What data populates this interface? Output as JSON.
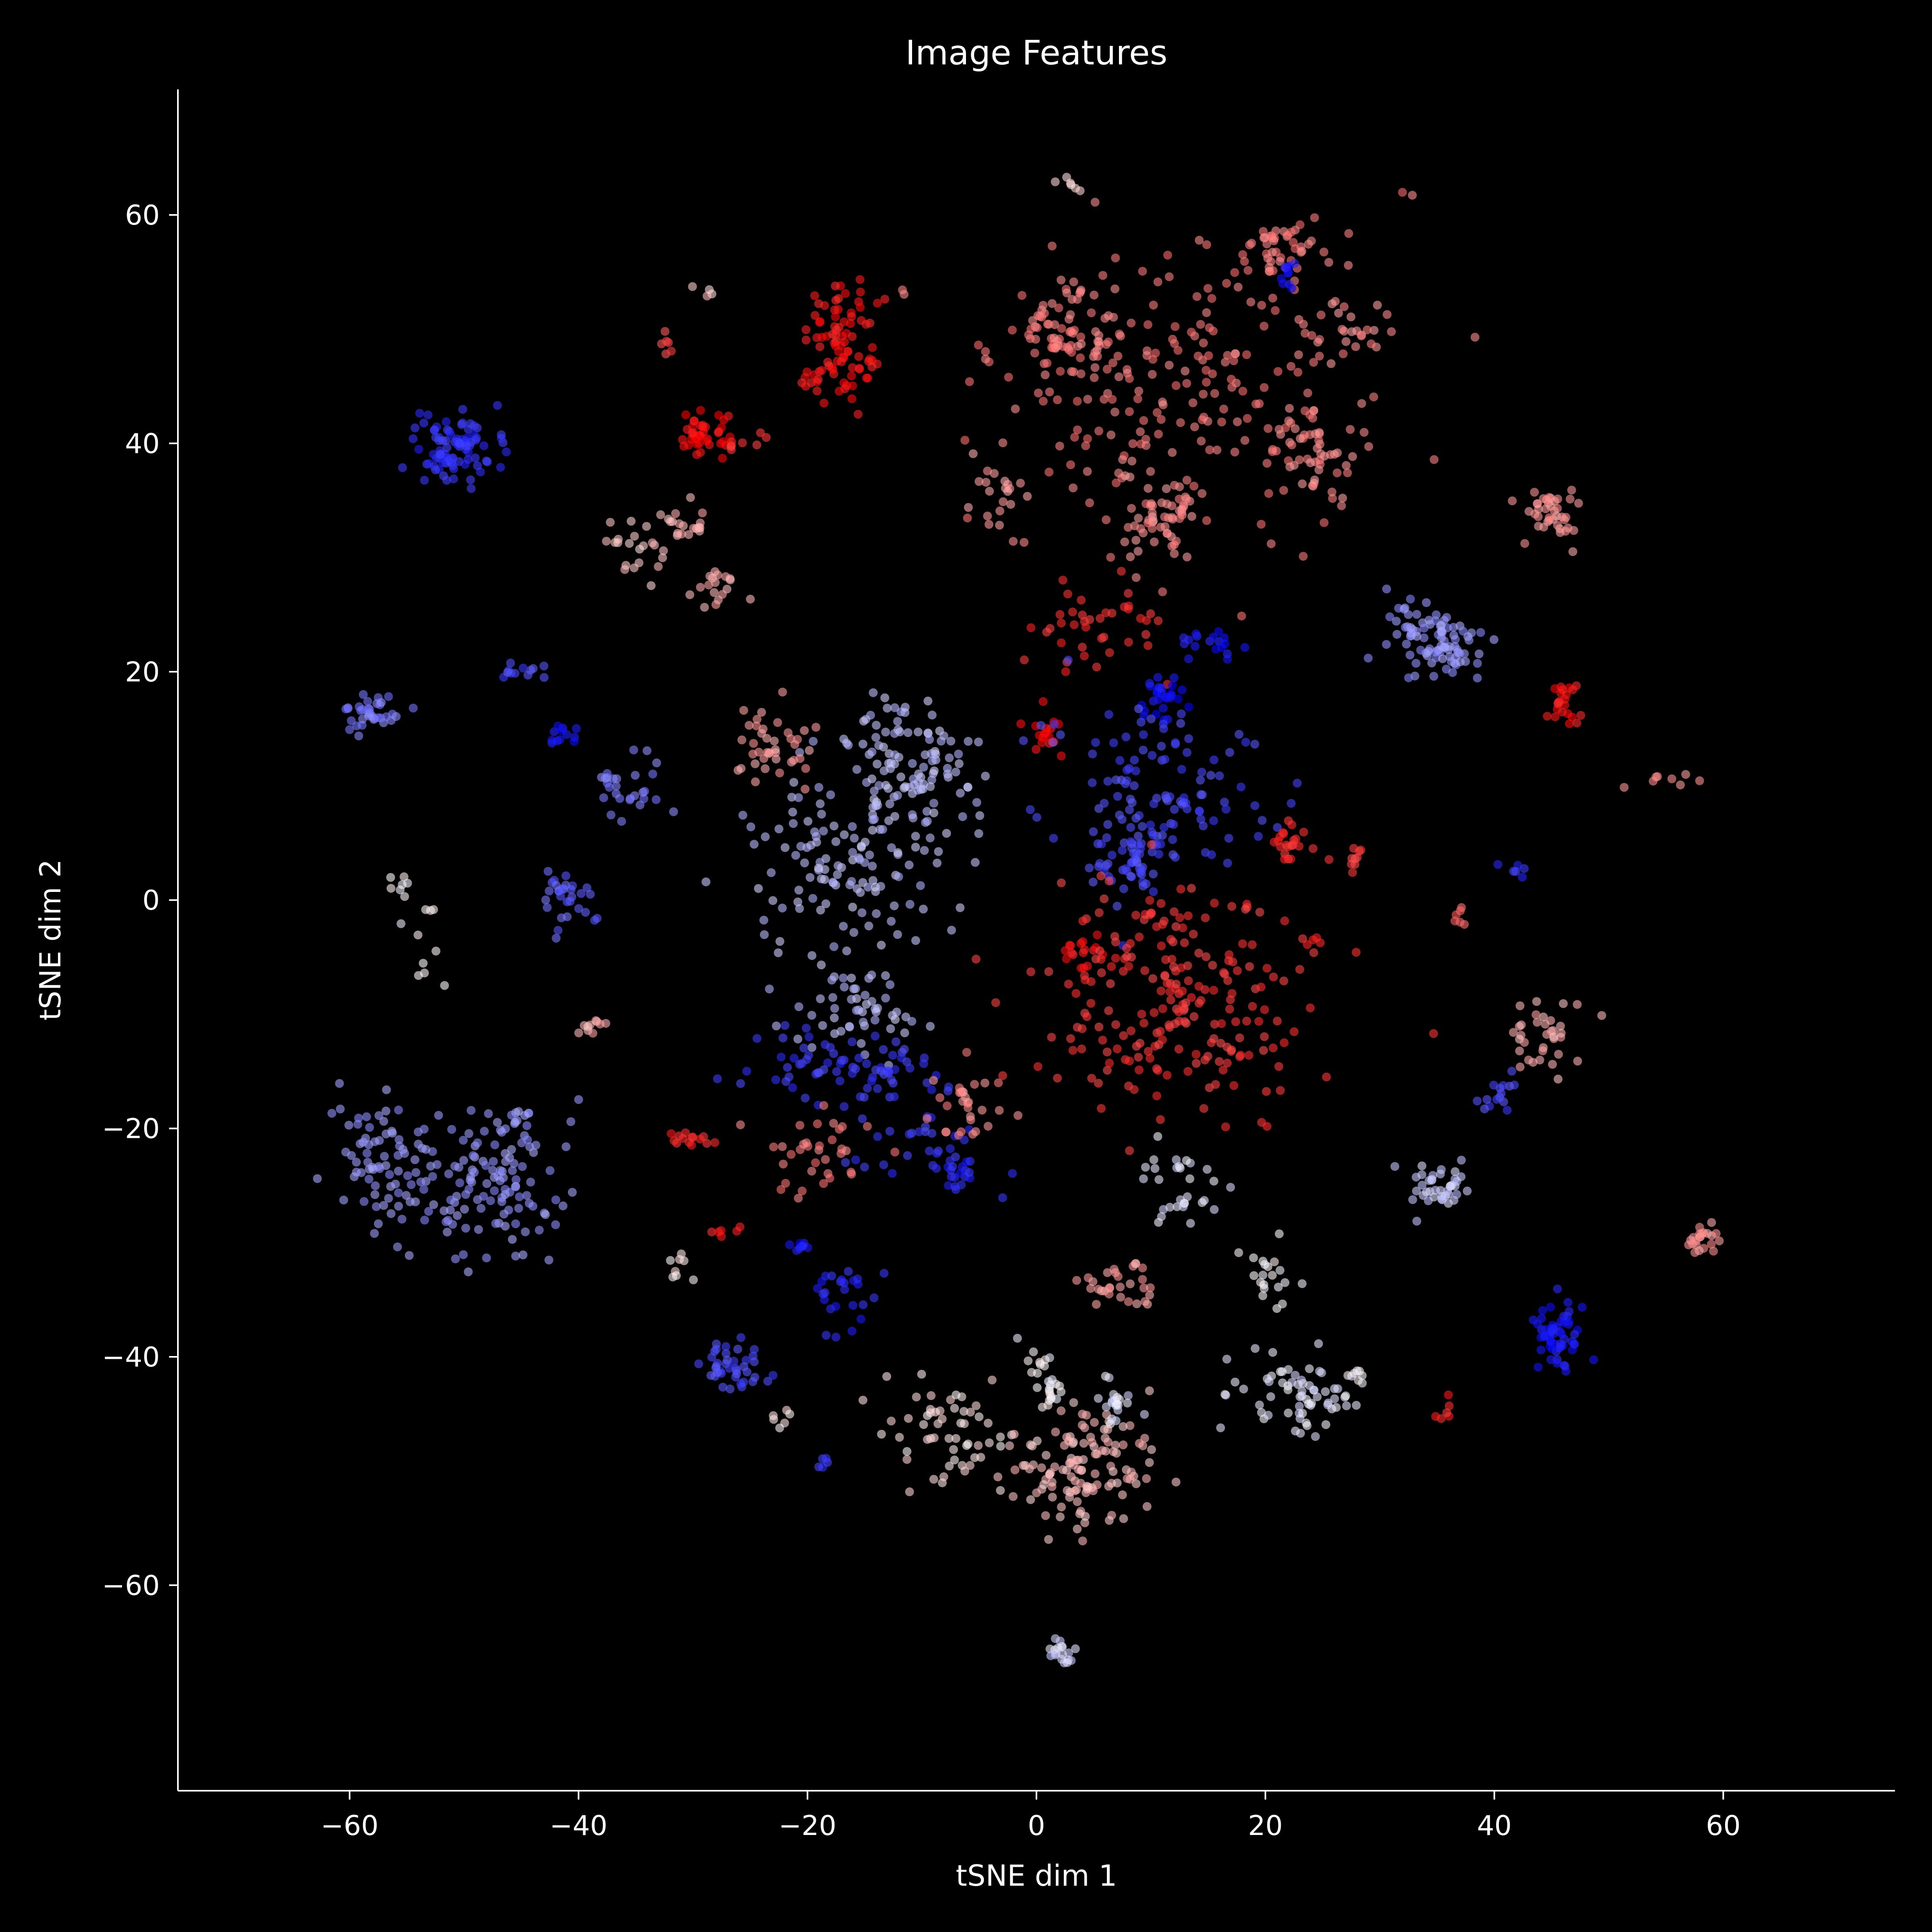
{
  "chart_data": {
    "type": "scatter",
    "title": "Image Features",
    "xlabel": "tSNE dim 1",
    "ylabel": "tSNE dim 2",
    "xlim": [
      -75,
      75
    ],
    "ylim": [
      -78,
      71
    ],
    "xticks": [
      -60,
      -40,
      -20,
      0,
      20,
      40,
      60
    ],
    "yticks": [
      -60,
      -40,
      -20,
      0,
      20,
      40,
      60
    ],
    "grid": false,
    "legend": "none",
    "background": "#000000",
    "colormap": "bwr",
    "point_alpha": 0.6,
    "clusters": [
      {
        "cx": -51,
        "cy": 39.5,
        "sx": 1.8,
        "sy": 1.6,
        "n": 90,
        "c": 0.1
      },
      {
        "cx": -17,
        "cy": 49,
        "sx": 1.8,
        "sy": 3.0,
        "n": 90,
        "c": 0.95
      },
      {
        "cx": -29.5,
        "cy": 41,
        "sx": 1.2,
        "sy": 1.0,
        "n": 40,
        "c": 0.98
      },
      {
        "cx": -26,
        "cy": 40,
        "sx": 1.5,
        "sy": 0.5,
        "n": 8,
        "c": 0.9
      },
      {
        "cx": -32.5,
        "cy": 48.5,
        "sx": 0.3,
        "sy": 1.0,
        "n": 6,
        "c": 0.85
      },
      {
        "cx": -29,
        "cy": 53.5,
        "sx": 0.6,
        "sy": 0.6,
        "n": 4,
        "c": 0.6
      },
      {
        "cx": 3,
        "cy": 49.5,
        "sx": 2.0,
        "sy": 2.2,
        "n": 70,
        "c": 0.75
      },
      {
        "cx": 13,
        "cy": 45,
        "sx": 8.0,
        "sy": 6.0,
        "n": 200,
        "c": 0.75
      },
      {
        "cx": 21,
        "cy": 57,
        "sx": 2.0,
        "sy": 1.5,
        "n": 45,
        "c": 0.75
      },
      {
        "cx": 27,
        "cy": 50,
        "sx": 1.8,
        "sy": 1.8,
        "n": 25,
        "c": 0.72
      },
      {
        "cx": 24,
        "cy": 39,
        "sx": 2.0,
        "sy": 1.8,
        "n": 50,
        "c": 0.72
      },
      {
        "cx": 11,
        "cy": 33.5,
        "sx": 2.0,
        "sy": 2.0,
        "n": 60,
        "c": 0.72
      },
      {
        "cx": 22,
        "cy": 54.5,
        "sx": 0.4,
        "sy": 0.8,
        "n": 10,
        "c": 0.05
      },
      {
        "cx": -3,
        "cy": 36,
        "sx": 1.5,
        "sy": 2.0,
        "n": 22,
        "c": 0.7
      },
      {
        "cx": 3,
        "cy": 62.8,
        "sx": 0.8,
        "sy": 0.3,
        "n": 6,
        "c": 0.58
      },
      {
        "cx": 45,
        "cy": 34,
        "sx": 1.2,
        "sy": 1.5,
        "n": 40,
        "c": 0.7
      },
      {
        "cx": -30.5,
        "cy": 33,
        "sx": 1.0,
        "sy": 0.8,
        "n": 18,
        "c": 0.65
      },
      {
        "cx": -35,
        "cy": 30.5,
        "sx": 1.8,
        "sy": 1.5,
        "n": 22,
        "c": 0.6
      },
      {
        "cx": -28.5,
        "cy": 27.5,
        "sx": 1.2,
        "sy": 1.2,
        "n": 18,
        "c": 0.65
      },
      {
        "cx": 5,
        "cy": 24,
        "sx": 3.0,
        "sy": 2.0,
        "n": 40,
        "c": 0.9
      },
      {
        "cx": 11,
        "cy": 17.5,
        "sx": 1.0,
        "sy": 1.0,
        "n": 28,
        "c": 0.03
      },
      {
        "cx": 15,
        "cy": 22.5,
        "sx": 1.5,
        "sy": 0.8,
        "n": 18,
        "c": 0.05
      },
      {
        "cx": 1,
        "cy": 14.5,
        "sx": 0.8,
        "sy": 1.0,
        "n": 18,
        "c": 0.97
      },
      {
        "cx": 10,
        "cy": 10,
        "sx": 4.5,
        "sy": 3.5,
        "n": 110,
        "c": 0.15
      },
      {
        "cx": 8,
        "cy": 4,
        "sx": 1.8,
        "sy": 2.0,
        "n": 55,
        "c": 0.15
      },
      {
        "cx": 33,
        "cy": 24,
        "sx": 2.0,
        "sy": 1.5,
        "n": 25,
        "c": 0.3
      },
      {
        "cx": 35.5,
        "cy": 22,
        "sx": 1.8,
        "sy": 1.5,
        "n": 65,
        "c": 0.3
      },
      {
        "cx": 46,
        "cy": 17,
        "sx": 0.6,
        "sy": 1.2,
        "n": 22,
        "c": 0.95
      },
      {
        "cx": 55.5,
        "cy": 10.5,
        "sx": 2.0,
        "sy": 0.4,
        "n": 8,
        "c": 0.7
      },
      {
        "cx": -58,
        "cy": 16.5,
        "sx": 1.2,
        "sy": 0.8,
        "n": 35,
        "c": 0.25
      },
      {
        "cx": -45,
        "cy": 20,
        "sx": 1.0,
        "sy": 0.4,
        "n": 12,
        "c": 0.15
      },
      {
        "cx": -41,
        "cy": 14.5,
        "sx": 1.0,
        "sy": 0.5,
        "n": 12,
        "c": 0.05
      },
      {
        "cx": -11,
        "cy": 11,
        "sx": 3.0,
        "sy": 3.5,
        "n": 120,
        "c": 0.38
      },
      {
        "cx": -17,
        "cy": 4,
        "sx": 4.0,
        "sy": 4.0,
        "n": 110,
        "c": 0.38
      },
      {
        "cx": -23,
        "cy": 13,
        "sx": 1.8,
        "sy": 1.8,
        "n": 40,
        "c": 0.68
      },
      {
        "cx": -36,
        "cy": 10,
        "sx": 1.8,
        "sy": 1.5,
        "n": 28,
        "c": 0.25
      },
      {
        "cx": -41,
        "cy": 0.5,
        "sx": 1.5,
        "sy": 1.5,
        "n": 30,
        "c": 0.2
      },
      {
        "cx": -55.5,
        "cy": 1.2,
        "sx": 0.4,
        "sy": 0.5,
        "n": 7,
        "c": 0.5
      },
      {
        "cx": -53,
        "cy": -3.5,
        "sx": 1.5,
        "sy": 1.8,
        "n": 10,
        "c": 0.5
      },
      {
        "cx": -16,
        "cy": -9,
        "sx": 3.0,
        "sy": 2.5,
        "n": 55,
        "c": 0.38
      },
      {
        "cx": -16,
        "cy": -15,
        "sx": 4.5,
        "sy": 2.0,
        "n": 75,
        "c": 0.12
      },
      {
        "cx": -10,
        "cy": -21,
        "sx": 3.0,
        "sy": 2.0,
        "n": 30,
        "c": 0.12
      },
      {
        "cx": -20,
        "cy": -22,
        "sx": 2.5,
        "sy": 2.0,
        "n": 35,
        "c": 0.75
      },
      {
        "cx": -6,
        "cy": -18,
        "sx": 1.5,
        "sy": 1.8,
        "n": 30,
        "c": 0.72
      },
      {
        "cx": -30,
        "cy": -21,
        "sx": 1.0,
        "sy": 0.5,
        "n": 14,
        "c": 0.92
      },
      {
        "cx": -39,
        "cy": -11,
        "sx": 0.8,
        "sy": 0.4,
        "n": 10,
        "c": 0.65
      },
      {
        "cx": 4,
        "cy": -4.5,
        "sx": 1.5,
        "sy": 1.0,
        "n": 20,
        "c": 0.95
      },
      {
        "cx": 12,
        "cy": -9,
        "sx": 6.0,
        "sy": 5.0,
        "n": 220,
        "c": 0.88
      },
      {
        "cx": 22,
        "cy": 5.5,
        "sx": 1.0,
        "sy": 1.0,
        "n": 20,
        "c": 0.9
      },
      {
        "cx": 27.5,
        "cy": 3.5,
        "sx": 0.8,
        "sy": 0.8,
        "n": 10,
        "c": 0.88
      },
      {
        "cx": 24.5,
        "cy": -3.8,
        "sx": 0.5,
        "sy": 0.5,
        "n": 6,
        "c": 0.9
      },
      {
        "cx": 37,
        "cy": -1.5,
        "sx": 0.4,
        "sy": 0.6,
        "n": 6,
        "c": 0.8
      },
      {
        "cx": 44.5,
        "cy": -12,
        "sx": 1.5,
        "sy": 1.5,
        "n": 35,
        "c": 0.65
      },
      {
        "cx": 40,
        "cy": -17,
        "sx": 1.5,
        "sy": 0.8,
        "n": 15,
        "c": 0.15
      },
      {
        "cx": 42,
        "cy": 2.5,
        "sx": 0.8,
        "sy": 0.5,
        "n": 6,
        "c": 0.1
      },
      {
        "cx": 35,
        "cy": -25,
        "sx": 1.2,
        "sy": 1.2,
        "n": 40,
        "c": 0.4
      },
      {
        "cx": 58.5,
        "cy": -29.5,
        "sx": 0.8,
        "sy": 0.7,
        "n": 22,
        "c": 0.7
      },
      {
        "cx": 45.5,
        "cy": -38,
        "sx": 1.0,
        "sy": 1.4,
        "n": 55,
        "c": 0.05
      },
      {
        "cx": -57,
        "cy": -22,
        "sx": 2.5,
        "sy": 3.0,
        "n": 80,
        "c": 0.3
      },
      {
        "cx": -48,
        "cy": -26,
        "sx": 3.5,
        "sy": 3.0,
        "n": 100,
        "c": 0.3
      },
      {
        "cx": -45,
        "cy": -20,
        "sx": 1.5,
        "sy": 1.5,
        "n": 25,
        "c": 0.3
      },
      {
        "cx": -27,
        "cy": -41,
        "sx": 1.5,
        "sy": 1.2,
        "n": 40,
        "c": 0.15
      },
      {
        "cx": -21,
        "cy": -30.5,
        "sx": 0.6,
        "sy": 0.4,
        "n": 8,
        "c": 0.05
      },
      {
        "cx": -17,
        "cy": -35,
        "sx": 2.0,
        "sy": 1.5,
        "n": 25,
        "c": 0.08
      },
      {
        "cx": -7,
        "cy": -24,
        "sx": 0.8,
        "sy": 1.0,
        "n": 18,
        "c": 0.08
      },
      {
        "cx": -27,
        "cy": -29,
        "sx": 0.6,
        "sy": 0.4,
        "n": 6,
        "c": 0.92
      },
      {
        "cx": -31,
        "cy": -32,
        "sx": 0.6,
        "sy": 1.0,
        "n": 8,
        "c": 0.55
      },
      {
        "cx": 12,
        "cy": -25,
        "sx": 2.0,
        "sy": 2.0,
        "n": 30,
        "c": 0.45
      },
      {
        "cx": 20.5,
        "cy": -33,
        "sx": 1.2,
        "sy": 1.5,
        "n": 20,
        "c": 0.5
      },
      {
        "cx": 7,
        "cy": -34,
        "sx": 2.0,
        "sy": 1.2,
        "n": 30,
        "c": 0.68
      },
      {
        "cx": -7,
        "cy": -47,
        "sx": 3.5,
        "sy": 2.5,
        "n": 60,
        "c": 0.55
      },
      {
        "cx": 0.5,
        "cy": -42,
        "sx": 1.0,
        "sy": 1.5,
        "n": 25,
        "c": 0.5
      },
      {
        "cx": 4,
        "cy": -50,
        "sx": 3.0,
        "sy": 2.5,
        "n": 120,
        "c": 0.62
      },
      {
        "cx": 7,
        "cy": -44,
        "sx": 1.0,
        "sy": 1.0,
        "n": 20,
        "c": 0.45
      },
      {
        "cx": 23,
        "cy": -43,
        "sx": 2.5,
        "sy": 2.0,
        "n": 65,
        "c": 0.45
      },
      {
        "cx": 28,
        "cy": -41.5,
        "sx": 0.6,
        "sy": 0.4,
        "n": 8,
        "c": 0.5
      },
      {
        "cx": 2,
        "cy": -66,
        "sx": 0.6,
        "sy": 0.6,
        "n": 18,
        "c": 0.42
      },
      {
        "cx": 35.5,
        "cy": -44.5,
        "sx": 0.4,
        "sy": 0.7,
        "n": 6,
        "c": 0.92
      },
      {
        "cx": -22,
        "cy": -45.5,
        "sx": 0.5,
        "sy": 0.5,
        "n": 6,
        "c": 0.55
      },
      {
        "cx": -19,
        "cy": -49.5,
        "sx": 0.5,
        "sy": 0.6,
        "n": 5,
        "c": 0.1
      }
    ]
  }
}
